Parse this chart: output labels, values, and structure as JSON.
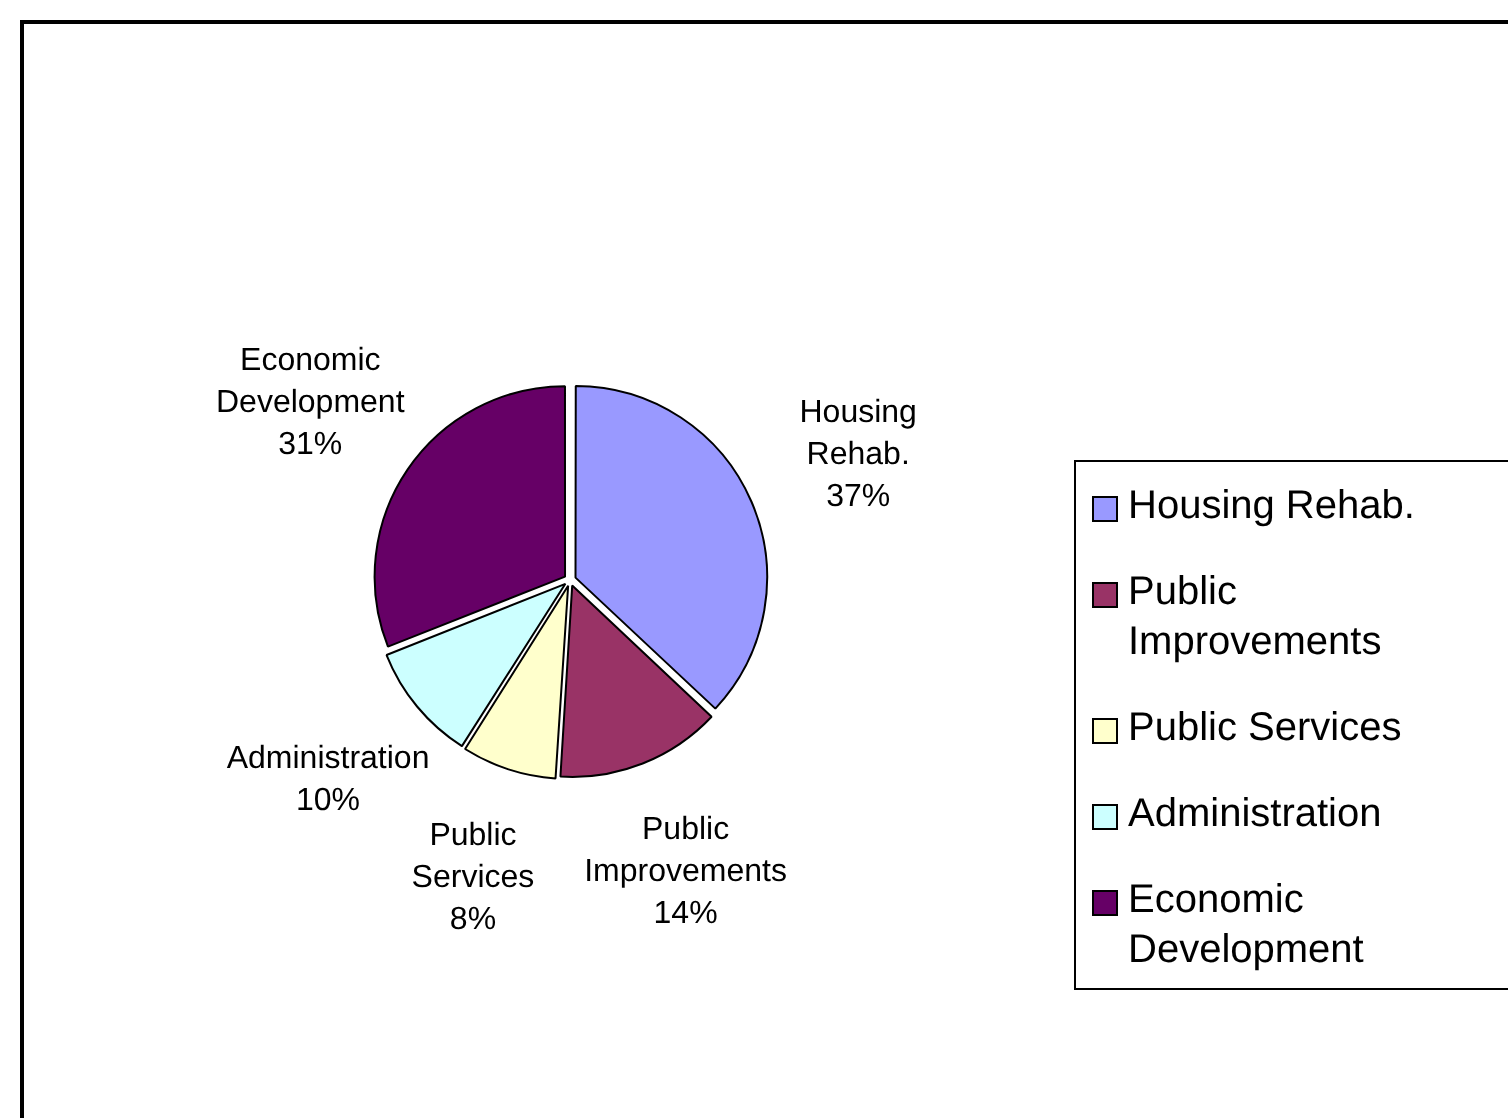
{
  "chart_data": {
    "type": "pie",
    "categories": [
      "Housing Rehab.",
      "Public Improvements",
      "Public Services",
      "Administration",
      "Economic Development"
    ],
    "values": [
      37,
      14,
      8,
      10,
      31
    ],
    "value_labels": [
      "37%",
      "14%",
      "8%",
      "10%",
      "31%"
    ],
    "colors": [
      "#9999ff",
      "#993366",
      "#ffffcc",
      "#ccffff",
      "#660066"
    ],
    "legend": "right"
  }
}
